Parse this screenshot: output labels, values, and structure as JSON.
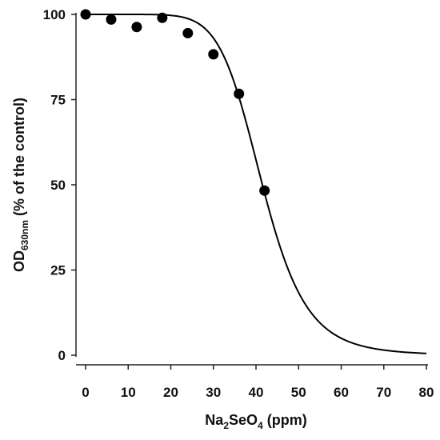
{
  "chart_data": {
    "type": "scatter",
    "xlabel": {
      "main": "Na",
      "sub1": "2",
      "mid": "SeO",
      "sub2": "4",
      "tail": " (ppm)"
    },
    "ylabel": {
      "main": "OD",
      "sub": "630nm",
      "tail": " (% of the control)"
    },
    "xlim": [
      0,
      80
    ],
    "ylim": [
      0,
      100
    ],
    "x_ticks": [
      0,
      10,
      20,
      30,
      40,
      50,
      60,
      70,
      80
    ],
    "y_ticks": [
      0,
      25,
      50,
      75,
      100
    ],
    "grid": false,
    "legend": "none",
    "series": [
      {
        "type": "scatter",
        "x": [
          0,
          6,
          12,
          18,
          24,
          30,
          36,
          42
        ],
        "y": [
          100,
          98.5,
          96.3,
          99,
          94.5,
          88.3,
          76.7,
          48.3
        ]
      }
    ],
    "fitted_curve": {
      "type": "line",
      "model": "logistic",
      "top": 100,
      "ec50": 41.5,
      "hill": 8,
      "x_range": [
        0,
        80
      ]
    },
    "colors": {
      "marker": "#000000",
      "line": "#000000",
      "axis": "#222222"
    }
  }
}
